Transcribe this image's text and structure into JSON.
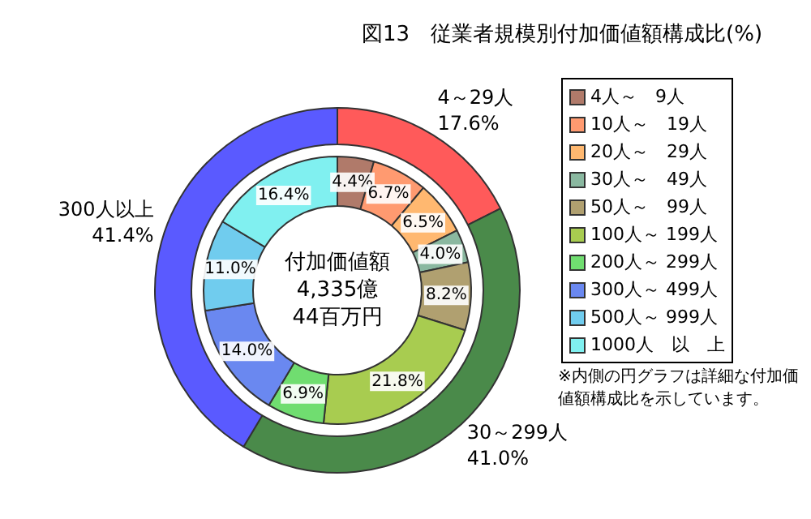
{
  "chart_data": [
    {
      "type": "donut",
      "title": "図13　従業者規模別付加価値額構成比(%)",
      "categories": [
        "4～29人",
        "30～299人",
        "300人以上"
      ],
      "values": [
        17.6,
        41.0,
        41.4
      ],
      "colors": [
        "#ff5a5a",
        "#4a8a4a",
        "#5a5aff"
      ],
      "value_labels": [
        "17.6%",
        "41.0%",
        "41.4%"
      ]
    },
    {
      "type": "donut",
      "categories": [
        "4人～　9人",
        "10人～　19人",
        "20人～　29人",
        "30人～　49人",
        "50人～　99人",
        "100人～ 199人",
        "200人～ 299人",
        "300人～ 499人",
        "500人～ 999人",
        "1000人　以　上"
      ],
      "values": [
        4.4,
        6.7,
        6.5,
        4.0,
        8.2,
        21.8,
        6.9,
        14.0,
        11.0,
        16.4
      ],
      "colors": [
        "#b07a6a",
        "#ff9a70",
        "#ffb870",
        "#8ab8a0",
        "#b0a070",
        "#a8cc50",
        "#70dd70",
        "#6a88f0",
        "#70ccee",
        "#80f0f0"
      ],
      "value_labels": [
        "4.4%",
        "6.7%",
        "6.5%",
        "4.0%",
        "8.2%",
        "21.8%",
        "6.9%",
        "14.0%",
        "11.0%",
        "16.4%"
      ],
      "legend": "right",
      "annotations": [
        "付加価値額\n4,335億\n44百万円",
        "※内側の円グラフは詳細な付加価値額構成比を示しています。"
      ]
    }
  ]
}
